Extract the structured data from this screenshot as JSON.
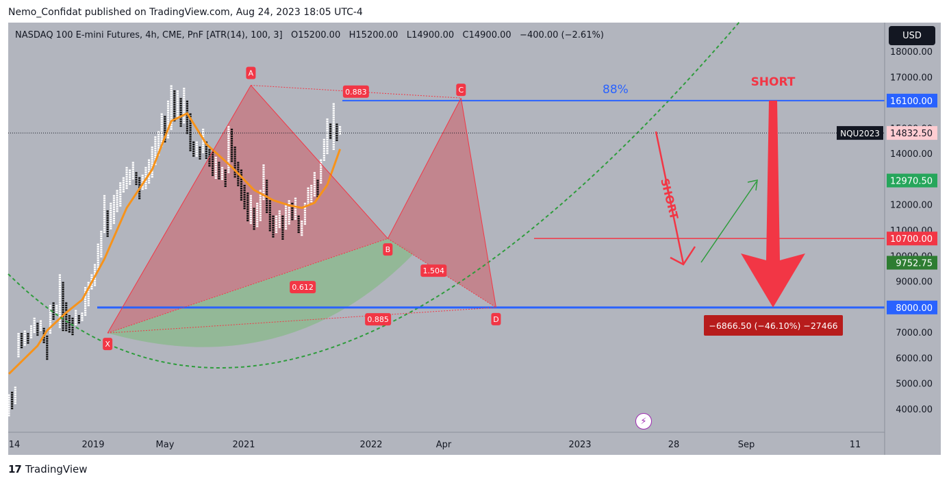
{
  "header": {
    "published": "Nemo_Confidat published on TradingView.com, Aug 24, 2023 18:05 UTC-4"
  },
  "legend": {
    "symbol": "NASDAQ 100 E-mini Futures, 4h, CME, PnF [ATR(14), 100, 3]",
    "o_label": "O",
    "o": "15200.00",
    "h_label": "H",
    "h": "15200.00",
    "l_label": "L",
    "l": "14900.00",
    "c_label": "C",
    "c": "14900.00",
    "change": "−400.00 (−2.61%)"
  },
  "currency_button": "USD",
  "footer": {
    "brand": "TradingView"
  },
  "colors": {
    "background": "#b2b5be",
    "line_blue": "#2962ff",
    "pattern_red": "#f23645",
    "fill_red": "#c47d86",
    "fill_green": "#8fb892",
    "ma_orange": "#f7931a",
    "green_arrow": "#2e9c3c",
    "price_badge": "#ffcdd2"
  },
  "chart_data": {
    "type": "point-and-figure",
    "title": "NASDAQ 100 E-mini Futures, 4h, CME, PnF [ATR(14), 100, 3]",
    "x_tick_labels": [
      "14",
      "2019",
      "May",
      "2021",
      "2022",
      "Apr",
      "2023",
      "28",
      "Sep",
      "11"
    ],
    "y_axis": {
      "ticks": [
        4000,
        5000,
        6000,
        7000,
        8000,
        9000,
        10000,
        11000,
        12000,
        13000,
        14000,
        15000,
        16000,
        17000,
        18000
      ]
    },
    "y_tick_labels": [
      "4000.00",
      "5000.00",
      "6000.00",
      "7000.00",
      "8000.00",
      "9000.00",
      "10000.00",
      "11000.00",
      "12000.00",
      "13000.00",
      "14000.00",
      "15000.00",
      "16000.00",
      "17000.00",
      "18000.00"
    ],
    "columns": [
      [
        3800,
        4600,
        "X"
      ],
      [
        4000,
        4700,
        "O"
      ],
      [
        4200,
        4900,
        "X"
      ],
      [
        6100,
        7000,
        "X"
      ],
      [
        6400,
        7000,
        "O"
      ],
      [
        6500,
        7100,
        "X"
      ],
      [
        6600,
        7000,
        "O"
      ],
      [
        6800,
        7300,
        "X"
      ],
      [
        7000,
        7600,
        "X"
      ],
      [
        6900,
        7400,
        "O"
      ],
      [
        7100,
        7500,
        "X"
      ],
      [
        6600,
        7200,
        "O"
      ],
      [
        6000,
        6900,
        "O"
      ],
      [
        7000,
        8100,
        "X"
      ],
      [
        7500,
        8200,
        "O"
      ],
      [
        7800,
        8100,
        "X"
      ],
      [
        7200,
        9300,
        "X"
      ],
      [
        7100,
        9000,
        "O"
      ],
      [
        7100,
        8200,
        "O"
      ],
      [
        7000,
        7700,
        "O"
      ],
      [
        6900,
        7600,
        "O"
      ],
      [
        7300,
        7900,
        "X"
      ],
      [
        7400,
        7700,
        "O"
      ],
      [
        7500,
        7800,
        "X"
      ],
      [
        7700,
        8800,
        "X"
      ],
      [
        8100,
        9000,
        "X"
      ],
      [
        8700,
        9300,
        "X"
      ],
      [
        8900,
        9700,
        "X"
      ],
      [
        9500,
        10500,
        "X"
      ],
      [
        10000,
        11000,
        "X"
      ],
      [
        10900,
        12400,
        "X"
      ],
      [
        10800,
        11800,
        "O"
      ],
      [
        11100,
        12100,
        "X"
      ],
      [
        11300,
        12400,
        "X"
      ],
      [
        11800,
        12600,
        "X"
      ],
      [
        12000,
        12900,
        "X"
      ],
      [
        12500,
        13100,
        "X"
      ],
      [
        12700,
        13500,
        "X"
      ],
      [
        12800,
        13400,
        "X"
      ],
      [
        13000,
        13700,
        "X"
      ],
      [
        12800,
        13300,
        "O"
      ],
      [
        12300,
        13100,
        "O"
      ],
      [
        12600,
        13200,
        "X"
      ],
      [
        12700,
        13500,
        "X"
      ],
      [
        12900,
        13800,
        "X"
      ],
      [
        13100,
        14300,
        "X"
      ],
      [
        13600,
        14700,
        "X"
      ],
      [
        14000,
        14900,
        "X"
      ],
      [
        14300,
        15600,
        "X"
      ],
      [
        14500,
        15500,
        "O"
      ],
      [
        14600,
        16100,
        "X"
      ],
      [
        15000,
        16700,
        "X"
      ],
      [
        15300,
        16500,
        "O"
      ],
      [
        15500,
        16500,
        "X"
      ],
      [
        15100,
        16200,
        "O"
      ],
      [
        15200,
        16600,
        "X"
      ],
      [
        14800,
        16100,
        "O"
      ],
      [
        14100,
        15600,
        "O"
      ],
      [
        13900,
        14500,
        "O"
      ],
      [
        13900,
        14500,
        "X"
      ],
      [
        13800,
        14300,
        "O"
      ],
      [
        14100,
        15000,
        "X"
      ],
      [
        13800,
        14500,
        "O"
      ],
      [
        13500,
        14200,
        "O"
      ],
      [
        13200,
        14100,
        "O"
      ],
      [
        13100,
        13900,
        "X"
      ],
      [
        13000,
        13700,
        "O"
      ],
      [
        13000,
        13500,
        "X"
      ],
      [
        12700,
        13400,
        "O"
      ],
      [
        13300,
        15100,
        "X"
      ],
      [
        13700,
        15000,
        "O"
      ],
      [
        13100,
        14300,
        "O"
      ],
      [
        12800,
        13700,
        "O"
      ],
      [
        12200,
        13400,
        "O"
      ],
      [
        11900,
        12800,
        "O"
      ],
      [
        11400,
        12500,
        "O"
      ],
      [
        11300,
        12400,
        "X"
      ],
      [
        11100,
        11900,
        "O"
      ],
      [
        11200,
        12100,
        "X"
      ],
      [
        11400,
        12600,
        "X"
      ],
      [
        12200,
        13600,
        "X"
      ],
      [
        11700,
        13000,
        "O"
      ],
      [
        11000,
        12200,
        "O"
      ],
      [
        10800,
        11600,
        "O"
      ],
      [
        10900,
        11600,
        "X"
      ],
      [
        11100,
        11800,
        "X"
      ],
      [
        10700,
        11600,
        "O"
      ],
      [
        11100,
        12000,
        "X"
      ],
      [
        11300,
        12200,
        "X"
      ],
      [
        11400,
        12100,
        "O"
      ],
      [
        11500,
        12300,
        "X"
      ],
      [
        10900,
        11600,
        "O"
      ],
      [
        10800,
        11400,
        "X"
      ],
      [
        11300,
        12100,
        "X"
      ],
      [
        12000,
        12700,
        "X"
      ],
      [
        12100,
        12800,
        "X"
      ],
      [
        12400,
        13300,
        "X"
      ],
      [
        12300,
        13000,
        "O"
      ],
      [
        12900,
        13800,
        "X"
      ],
      [
        13800,
        14600,
        "X"
      ],
      [
        14000,
        15400,
        "X"
      ],
      [
        14600,
        15200,
        "O"
      ],
      [
        14200,
        16000,
        "X"
      ],
      [
        14500,
        15200,
        "O"
      ],
      [
        14800,
        15100,
        "X"
      ]
    ],
    "series": [
      {
        "values": [
          [
            0,
            5400
          ],
          [
            9,
            6500
          ],
          [
            12,
            7100
          ],
          [
            18,
            7800
          ],
          [
            23,
            8300
          ],
          [
            30,
            9900
          ],
          [
            37,
            11900
          ],
          [
            45,
            13400
          ],
          [
            51,
            15300
          ],
          [
            56,
            15600
          ],
          [
            62,
            14400
          ],
          [
            70,
            13500
          ],
          [
            77,
            12600
          ],
          [
            83,
            12200
          ],
          [
            88,
            12000
          ],
          [
            92,
            11900
          ],
          [
            96,
            12100
          ],
          [
            100,
            12800
          ],
          [
            104,
            14200
          ]
        ]
      }
    ],
    "pattern": {
      "points": [
        {
          "label": "X",
          "x": 31,
          "y": 7000
        },
        {
          "label": "A",
          "x": 76,
          "y": 16700
        },
        {
          "label": "B",
          "x": 119,
          "y": 10700
        },
        {
          "label": "C",
          "x": 142,
          "y": 16200
        },
        {
          "label": "D",
          "x": 153,
          "y": 8000
        }
      ],
      "ratios": [
        "0.883",
        "0.612",
        "1.504",
        "0.885"
      ],
      "completion": "88%"
    },
    "horizontal_levels": [
      {
        "price_label": "16100.00",
        "color": "blue"
      },
      {
        "price_label": "10700.00",
        "color": "red"
      },
      {
        "price_label": "8000.00",
        "color": "blue"
      }
    ],
    "price_labels": [
      {
        "text": "14832.50",
        "color": "pink",
        "symbol": "NQU2023"
      },
      {
        "text": "12970.50",
        "color": "green"
      },
      {
        "text": "9752.75",
        "color": "green"
      }
    ],
    "annotations": {
      "short_big": "SHORT",
      "short_diag": "SHORT",
      "projection": "−6866.50 (−46.10%) −27466"
    }
  }
}
